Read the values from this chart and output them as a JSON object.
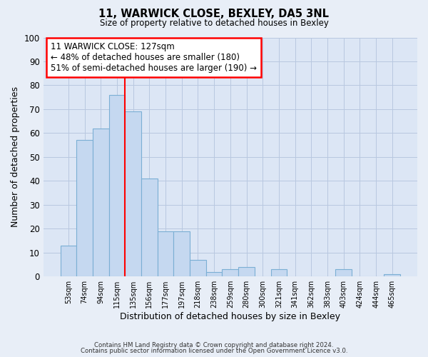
{
  "title": "11, WARWICK CLOSE, BEXLEY, DA5 3NL",
  "subtitle": "Size of property relative to detached houses in Bexley",
  "xlabel": "Distribution of detached houses by size in Bexley",
  "ylabel": "Number of detached properties",
  "footnote1": "Contains HM Land Registry data © Crown copyright and database right 2024.",
  "footnote2": "Contains public sector information licensed under the Open Government Licence v3.0.",
  "bar_labels": [
    "53sqm",
    "74sqm",
    "94sqm",
    "115sqm",
    "135sqm",
    "156sqm",
    "177sqm",
    "197sqm",
    "218sqm",
    "238sqm",
    "259sqm",
    "280sqm",
    "300sqm",
    "321sqm",
    "341sqm",
    "362sqm",
    "383sqm",
    "403sqm",
    "424sqm",
    "444sqm",
    "465sqm"
  ],
  "bar_heights": [
    13,
    57,
    62,
    76,
    69,
    41,
    19,
    19,
    7,
    2,
    3,
    4,
    0,
    3,
    0,
    0,
    0,
    3,
    0,
    0,
    1
  ],
  "bar_color": "#c5d8f0",
  "bar_edge_color": "#7bafd4",
  "ylim": [
    0,
    100
  ],
  "yticks": [
    0,
    10,
    20,
    30,
    40,
    50,
    60,
    70,
    80,
    90,
    100
  ],
  "property_line_x": 3.5,
  "annotation_title": "11 WARWICK CLOSE: 127sqm",
  "annotation_line1": "← 48% of detached houses are smaller (180)",
  "annotation_line2": "51% of semi-detached houses are larger (190) →",
  "background_color": "#e8eef7",
  "plot_bg_color": "#dce6f5",
  "grid_color": "#b8c8e0"
}
